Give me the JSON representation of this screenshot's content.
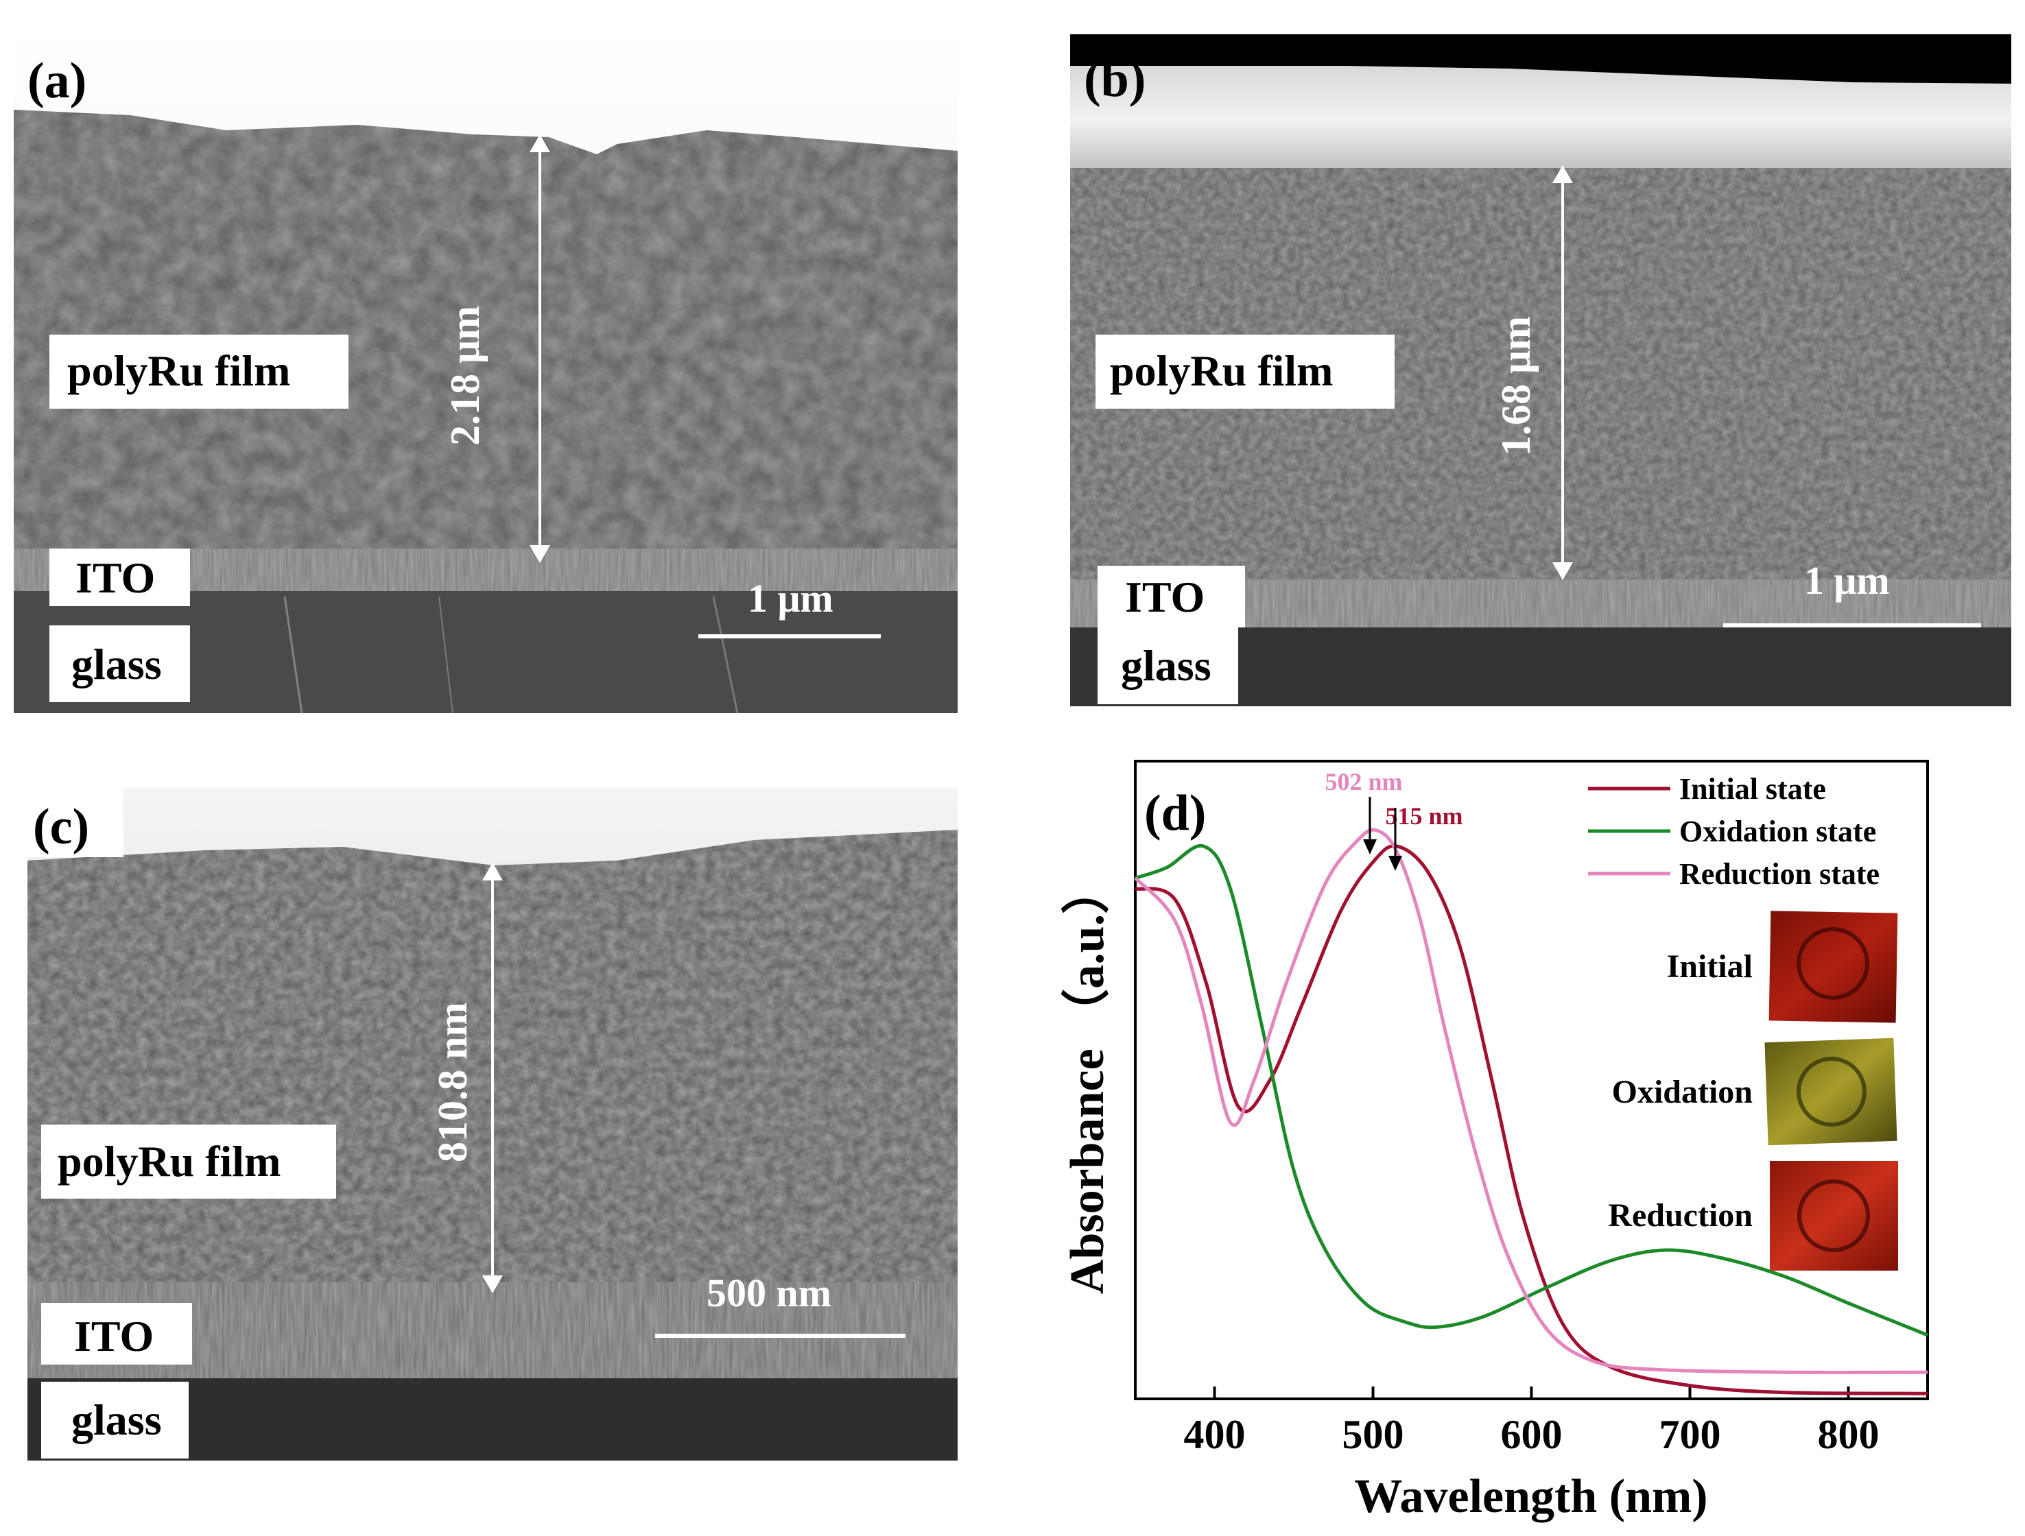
{
  "panels": {
    "a": {
      "tag": "(a)",
      "film_label": "polyRu film",
      "ito_label": "ITO",
      "glass_label": "glass",
      "thickness": "2.18 μm",
      "scalebar": "1 μm"
    },
    "b": {
      "tag": "(b)",
      "film_label": "polyRu film",
      "ito_label": "ITO",
      "glass_label": "glass",
      "thickness": "1.68 μm",
      "scalebar": "1 μm"
    },
    "c": {
      "tag": "(c)",
      "film_label": "polyRu film",
      "ito_label": "ITO",
      "glass_label": "glass",
      "thickness": "810.8 nm",
      "scalebar": "500 nm"
    },
    "d": {
      "tag": "(d)",
      "peak_label_reduction": "502 nm",
      "peak_label_initial": "515 nm",
      "inset": {
        "initial": "Initial",
        "oxidation": "Oxidation",
        "reduction": "Reduction"
      }
    }
  },
  "chart_data": {
    "type": "line",
    "xlabel": "Wavelength (nm)",
    "ylabel": "Absorbance （a.u.）",
    "xlim": [
      350,
      850
    ],
    "ylim": [
      0,
      1.2
    ],
    "xticks": [
      "400",
      "500",
      "600",
      "700",
      "800"
    ],
    "legend_position": "top-right",
    "series": [
      {
        "name": "Initial state",
        "color": "#a01030",
        "points": [
          [
            350,
            0.96
          ],
          [
            375,
            0.94
          ],
          [
            395,
            0.78
          ],
          [
            415,
            0.55
          ],
          [
            435,
            0.6
          ],
          [
            455,
            0.74
          ],
          [
            480,
            0.92
          ],
          [
            500,
            1.01
          ],
          [
            515,
            1.04
          ],
          [
            535,
            0.99
          ],
          [
            555,
            0.85
          ],
          [
            575,
            0.6
          ],
          [
            595,
            0.34
          ],
          [
            620,
            0.14
          ],
          [
            650,
            0.06
          ],
          [
            700,
            0.025
          ],
          [
            760,
            0.012
          ],
          [
            850,
            0.01
          ]
        ]
      },
      {
        "name": "Oxidation state",
        "color": "#1d8a2a",
        "points": [
          [
            350,
            0.98
          ],
          [
            370,
            1.0
          ],
          [
            393,
            1.04
          ],
          [
            410,
            0.96
          ],
          [
            430,
            0.7
          ],
          [
            450,
            0.43
          ],
          [
            470,
            0.28
          ],
          [
            495,
            0.18
          ],
          [
            520,
            0.145
          ],
          [
            540,
            0.135
          ],
          [
            570,
            0.155
          ],
          [
            610,
            0.21
          ],
          [
            650,
            0.26
          ],
          [
            685,
            0.28
          ],
          [
            720,
            0.265
          ],
          [
            760,
            0.23
          ],
          [
            800,
            0.18
          ],
          [
            850,
            0.12
          ]
        ]
      },
      {
        "name": "Reduction state",
        "color": "#e585bd",
        "points": [
          [
            350,
            0.98
          ],
          [
            375,
            0.9
          ],
          [
            392,
            0.74
          ],
          [
            410,
            0.52
          ],
          [
            425,
            0.6
          ],
          [
            445,
            0.78
          ],
          [
            470,
            0.97
          ],
          [
            490,
            1.05
          ],
          [
            502,
            1.07
          ],
          [
            515,
            1.03
          ],
          [
            530,
            0.9
          ],
          [
            545,
            0.7
          ],
          [
            565,
            0.46
          ],
          [
            585,
            0.27
          ],
          [
            610,
            0.13
          ],
          [
            640,
            0.07
          ],
          [
            680,
            0.055
          ],
          [
            760,
            0.05
          ],
          [
            850,
            0.05
          ]
        ]
      }
    ]
  }
}
